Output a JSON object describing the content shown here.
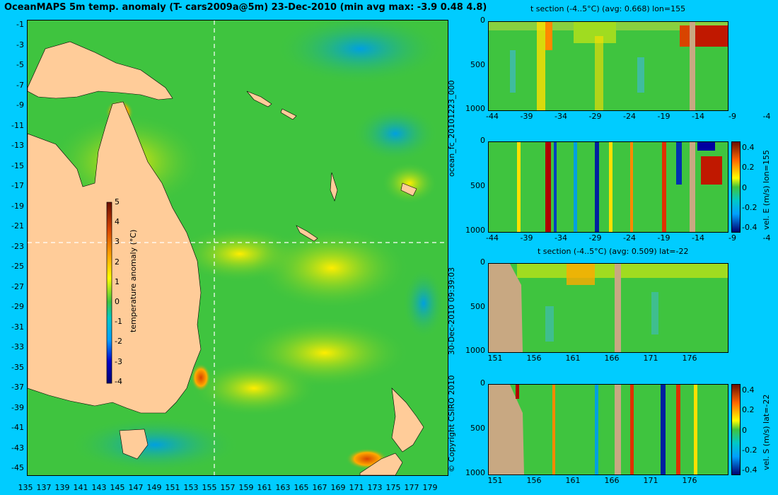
{
  "header": {
    "title": "OceanMAPS 5m temp. anomaly (T- cars2009a@5m) 23-Dec-2010 (min avg max: -3.9 0.48 4.8)"
  },
  "side_labels": {
    "run_id": "ocean_fc_20101223_000",
    "timestamp": "30-Dec-2010 09:39:03",
    "copyright": "© Copyright CSIRO 2010"
  },
  "colors": {
    "background": "#00ccff",
    "land": "#ffcc99",
    "section_land": "#c8a882",
    "ocean_base": "#3fc43f"
  },
  "chart_data": [
    {
      "type": "heatmap",
      "name": "map",
      "x_ticks": [
        "135",
        "137",
        "139",
        "141",
        "143",
        "145",
        "147",
        "149",
        "151",
        "153",
        "155",
        "157",
        "159",
        "161",
        "163",
        "165",
        "167",
        "169",
        "171",
        "173",
        "175",
        "177",
        "179"
      ],
      "y_ticks": [
        "-1",
        "-3",
        "-5",
        "-7",
        "-9",
        "-11",
        "-13",
        "-15",
        "-17",
        "-19",
        "-21",
        "-23",
        "-25",
        "-27",
        "-29",
        "-31",
        "-33",
        "-35",
        "-37",
        "-39",
        "-41",
        "-43",
        "-45"
      ],
      "xlim": [
        134.3,
        180
      ],
      "ylim": [
        -45,
        0
      ],
      "crosshair": {
        "lon": 155,
        "lat": -22
      },
      "colorbar": {
        "label": "temperature anomaly (°C)",
        "ticks": [
          "5",
          "4",
          "3",
          "2",
          "1",
          "0",
          "-1",
          "-2",
          "-3",
          "-4"
        ],
        "range": [
          -4,
          5
        ]
      }
    },
    {
      "type": "heatmap",
      "name": "t-section-lon",
      "title": "t section (-4..5°C) (avg: 0.668) lon=155",
      "x_ticks": [
        "-44",
        "-39",
        "-34",
        "-29",
        "-24",
        "-19",
        "-14",
        "-9",
        "-4"
      ],
      "y_ticks": [
        "0",
        "500",
        "1000"
      ]
    },
    {
      "type": "heatmap",
      "name": "vel-e-section",
      "x_ticks": [
        "-44",
        "-39",
        "-34",
        "-29",
        "-24",
        "-19",
        "-14",
        "-9",
        "-4"
      ],
      "y_ticks": [
        "0",
        "500",
        "1000"
      ],
      "colorbar": {
        "label": "vel. E (m/s) lon=155",
        "ticks": [
          "0.4",
          "0.2",
          "0",
          "-0.2",
          "-0.4"
        ]
      }
    },
    {
      "type": "heatmap",
      "name": "t-section-lat",
      "title": "t section (-4..5°C) (avg: 0.509) lat=-22",
      "x_ticks": [
        "151",
        "156",
        "161",
        "166",
        "171",
        "176"
      ],
      "y_ticks": [
        "0",
        "500",
        "1000"
      ]
    },
    {
      "type": "heatmap",
      "name": "vel-s-section",
      "x_ticks": [
        "151",
        "156",
        "161",
        "166",
        "171",
        "176"
      ],
      "y_ticks": [
        "0",
        "500",
        "1000"
      ],
      "colorbar": {
        "label": "vel. S (m/s) lat=-22",
        "ticks": [
          "0.4",
          "0.2",
          "0",
          "-0.2",
          "-0.4"
        ]
      }
    }
  ]
}
